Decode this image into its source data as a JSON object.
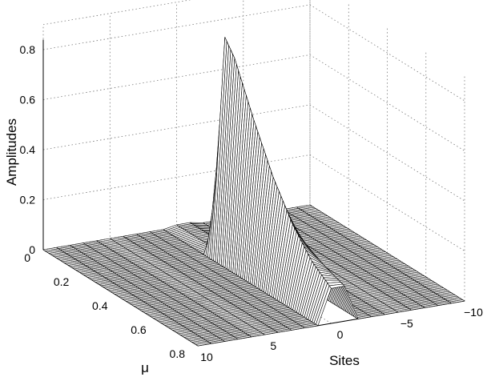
{
  "chart_data": {
    "type": "surface",
    "title": "",
    "xlabel": "Sites",
    "ylabel": "μ",
    "zlabel": "Amplitudes",
    "xlim": [
      -10,
      10
    ],
    "ylim": [
      0,
      0.8
    ],
    "zlim": [
      0,
      0.8
    ],
    "x_ticks": [
      "−10",
      "−5",
      "0",
      "5",
      "10"
    ],
    "x_tick_values": [
      -10,
      -5,
      0,
      5,
      10
    ],
    "y_ticks": [
      "0",
      "0.2",
      "0.4",
      "0.6",
      "0.8"
    ],
    "y_tick_values": [
      0,
      0.2,
      0.4,
      0.6,
      0.8
    ],
    "z_ticks": [
      "0",
      "0.2",
      "0.4",
      "0.6",
      "0.8"
    ],
    "z_tick_values": [
      0,
      0.2,
      0.4,
      0.6,
      0.8
    ],
    "grid": true,
    "series": [
      {
        "site": 0,
        "mu": [
          0,
          0.1,
          0.2,
          0.25,
          0.3,
          0.35,
          0.4,
          0.45,
          0.5,
          0.55,
          0.6,
          0.7,
          0.8
        ],
        "amplitude": [
          0.01,
          0.01,
          0.01,
          0.88,
          0.82,
          0.72,
          0.62,
          0.53,
          0.44,
          0.37,
          0.3,
          0.2,
          0.14
        ]
      },
      {
        "site": -1,
        "mu": [
          0,
          0.1,
          0.2,
          0.25,
          0.3,
          0.35,
          0.4,
          0.45,
          0.5,
          0.55,
          0.6,
          0.7,
          0.8
        ],
        "amplitude": [
          0.01,
          0.01,
          0.01,
          0.03,
          0.15,
          0.25,
          0.28,
          0.27,
          0.25,
          0.23,
          0.21,
          0.17,
          0.14
        ]
      }
    ]
  }
}
